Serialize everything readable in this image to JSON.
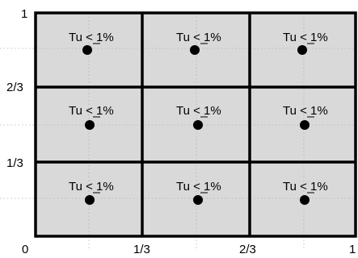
{
  "axis_ticks": {
    "x": [
      "0",
      "1/3",
      "2/3",
      "1"
    ],
    "y": [
      "1",
      "2/3",
      "1/3"
    ]
  },
  "cells": [
    {
      "label": "Tu < 1%"
    },
    {
      "label": "Tu < 1%"
    },
    {
      "label": "Tu < 1%"
    },
    {
      "label": "Tu < 1%"
    },
    {
      "label": "Tu < 1%"
    },
    {
      "label": "Tu < 1%"
    },
    {
      "label": "Tu < 1%"
    },
    {
      "label": "Tu < 1%"
    },
    {
      "label": "Tu < 1%"
    }
  ],
  "colors": {
    "cell_fill": "#d9d9d9",
    "lines": "#000000",
    "dot": "#000000"
  }
}
